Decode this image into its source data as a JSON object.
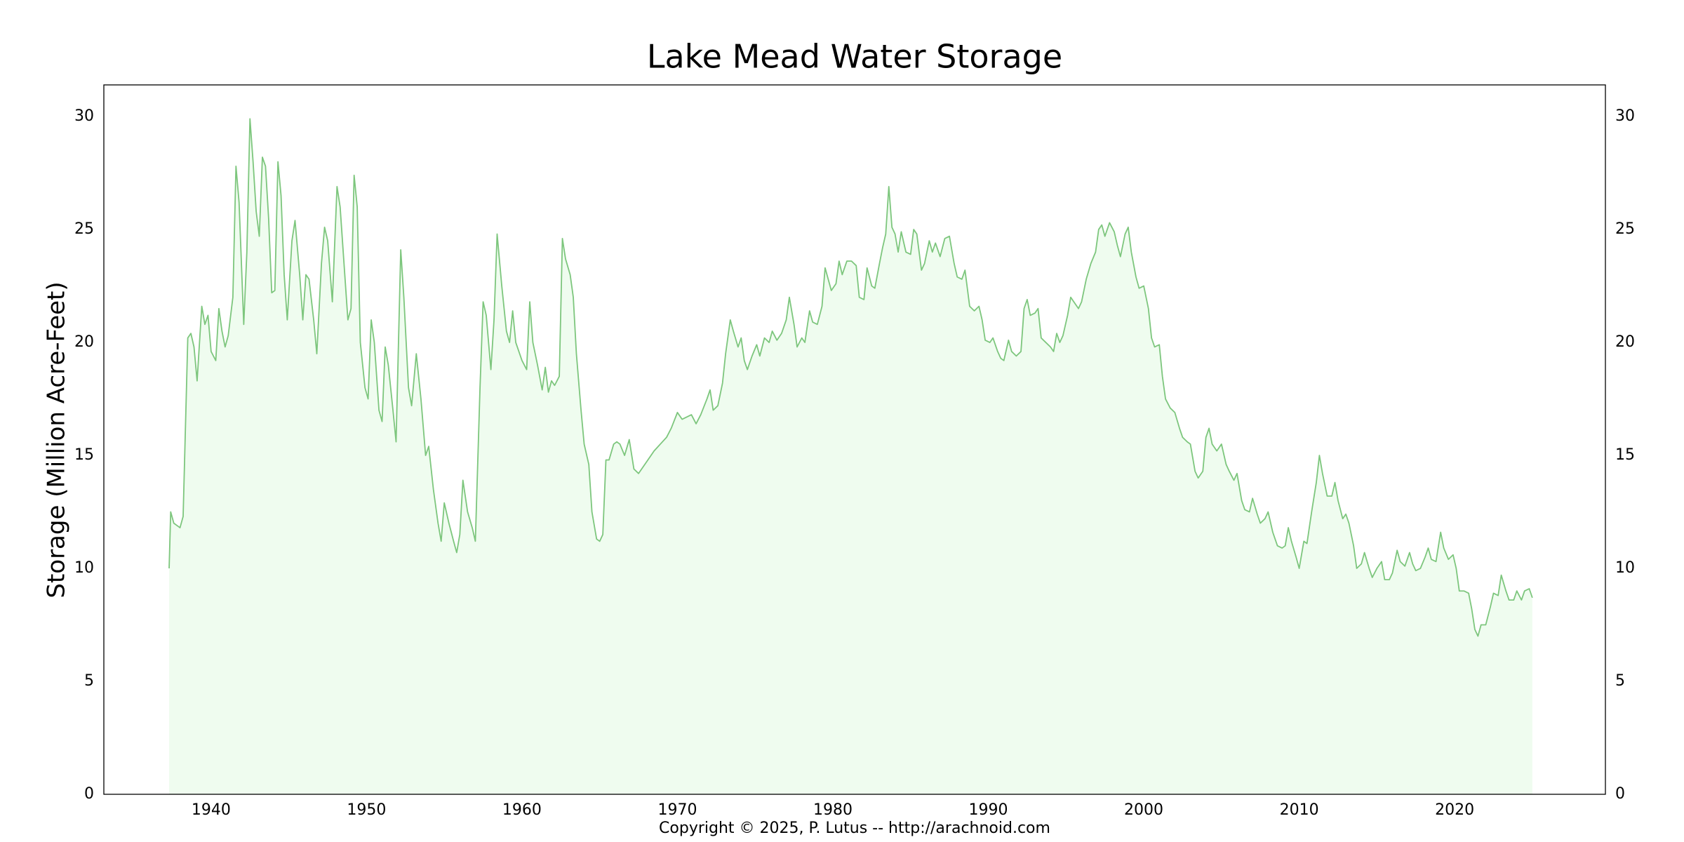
{
  "chart_data": {
    "type": "area",
    "title": "Lake Mead Water Storage",
    "ylabel": "Storage (Million Acre-Feet)",
    "footer": "Copyright © 2025, P. Lutus -- http://arachnoid.com",
    "color": "#7dc67d",
    "fill_color": "#effcef",
    "grid": true,
    "xlim": [
      1933.1,
      2029.7
    ],
    "xticks": [
      1940,
      1950,
      1960,
      1970,
      1980,
      1990,
      2000,
      2010,
      2020
    ],
    "ylim": [
      0,
      31.4
    ],
    "yticks": [
      0,
      5,
      10,
      15,
      20,
      25,
      30
    ],
    "y2lim": [
      0,
      31.4
    ],
    "y2ticks": [
      0,
      5,
      10,
      15,
      20,
      25,
      30
    ],
    "x": [
      1937.3,
      1937.4,
      1937.6,
      1938.0,
      1938.2,
      1938.5,
      1938.7,
      1938.9,
      1939.1,
      1939.4,
      1939.6,
      1939.8,
      1940.0,
      1940.3,
      1940.5,
      1940.7,
      1940.9,
      1941.1,
      1941.4,
      1941.6,
      1941.8,
      1942.1,
      1942.3,
      1942.5,
      1942.7,
      1942.9,
      1943.1,
      1943.3,
      1943.5,
      1943.7,
      1943.9,
      1944.1,
      1944.3,
      1944.5,
      1944.7,
      1944.9,
      1945.2,
      1945.4,
      1945.7,
      1945.9,
      1946.1,
      1946.3,
      1946.6,
      1946.8,
      1947.1,
      1947.3,
      1947.5,
      1947.8,
      1948.1,
      1948.3,
      1948.6,
      1948.8,
      1949.0,
      1949.2,
      1949.4,
      1949.6,
      1949.9,
      1950.1,
      1950.3,
      1950.5,
      1950.8,
      1951.0,
      1951.2,
      1951.4,
      1951.7,
      1951.9,
      1952.2,
      1952.4,
      1952.7,
      1952.9,
      1953.2,
      1953.5,
      1953.8,
      1954.0,
      1954.3,
      1954.6,
      1954.8,
      1955.0,
      1955.3,
      1955.6,
      1955.8,
      1956.0,
      1956.2,
      1956.5,
      1956.8,
      1957.0,
      1957.3,
      1957.5,
      1957.7,
      1958.0,
      1958.2,
      1958.4,
      1958.7,
      1959.0,
      1959.2,
      1959.4,
      1959.6,
      1960.0,
      1960.3,
      1960.5,
      1960.7,
      1961.0,
      1961.3,
      1961.5,
      1961.7,
      1961.9,
      1962.1,
      1962.4,
      1962.6,
      1962.8,
      1963.1,
      1963.3,
      1963.5,
      1963.8,
      1964.0,
      1964.3,
      1964.5,
      1964.8,
      1965.0,
      1965.2,
      1965.4,
      1965.6,
      1965.9,
      1966.1,
      1966.3,
      1966.6,
      1966.9,
      1967.2,
      1967.5,
      1967.8,
      1968.1,
      1968.5,
      1968.9,
      1969.3,
      1969.6,
      1970.0,
      1970.3,
      1970.6,
      1970.9,
      1971.2,
      1971.5,
      1971.9,
      1972.1,
      1972.3,
      1972.6,
      1972.9,
      1973.1,
      1973.4,
      1973.6,
      1973.9,
      1974.1,
      1974.3,
      1974.5,
      1974.8,
      1975.1,
      1975.3,
      1975.6,
      1975.9,
      1976.1,
      1976.4,
      1976.7,
      1977.0,
      1977.2,
      1977.5,
      1977.7,
      1978.0,
      1978.2,
      1978.5,
      1978.7,
      1979.0,
      1979.3,
      1979.5,
      1979.7,
      1979.9,
      1980.2,
      1980.4,
      1980.6,
      1980.9,
      1981.2,
      1981.5,
      1981.7,
      1982.0,
      1982.2,
      1982.5,
      1982.7,
      1983.0,
      1983.2,
      1983.4,
      1983.6,
      1983.8,
      1984.0,
      1984.2,
      1984.4,
      1984.7,
      1985.0,
      1985.2,
      1985.4,
      1985.7,
      1985.9,
      1986.2,
      1986.4,
      1986.6,
      1986.9,
      1987.2,
      1987.5,
      1987.8,
      1988.0,
      1988.3,
      1988.5,
      1988.8,
      1989.1,
      1989.4,
      1989.6,
      1989.8,
      1990.1,
      1990.3,
      1990.6,
      1990.8,
      1991.0,
      1991.3,
      1991.5,
      1991.8,
      1992.1,
      1992.3,
      1992.5,
      1992.7,
      1993.0,
      1993.2,
      1993.4,
      1993.7,
      1994.0,
      1994.2,
      1994.4,
      1994.6,
      1994.8,
      1995.1,
      1995.3,
      1995.5,
      1995.8,
      1996.0,
      1996.3,
      1996.6,
      1996.9,
      1997.1,
      1997.3,
      1997.5,
      1997.8,
      1998.1,
      1998.3,
      1998.5,
      1998.8,
      1999.0,
      1999.2,
      1999.5,
      1999.7,
      2000.0,
      2000.3,
      2000.5,
      2000.7,
      2001.0,
      2001.2,
      2001.4,
      2001.7,
      2002.0,
      2002.3,
      2002.5,
      2002.8,
      2003.0,
      2003.3,
      2003.5,
      2003.8,
      2004.0,
      2004.2,
      2004.4,
      2004.7,
      2005.0,
      2005.3,
      2005.5,
      2005.8,
      2006.0,
      2006.3,
      2006.5,
      2006.8,
      2007.0,
      2007.3,
      2007.5,
      2007.8,
      2008.0,
      2008.3,
      2008.6,
      2008.9,
      2009.1,
      2009.3,
      2009.5,
      2009.8,
      2010.0,
      2010.3,
      2010.5,
      2010.8,
      2011.1,
      2011.3,
      2011.5,
      2011.8,
      2012.1,
      2012.3,
      2012.5,
      2012.8,
      2013.0,
      2013.2,
      2013.5,
      2013.7,
      2014.0,
      2014.2,
      2014.5,
      2014.7,
      2015.0,
      2015.3,
      2015.5,
      2015.8,
      2016.0,
      2016.3,
      2016.5,
      2016.8,
      2017.1,
      2017.3,
      2017.5,
      2017.8,
      2018.1,
      2018.3,
      2018.5,
      2018.8,
      2019.1,
      2019.3,
      2019.6,
      2019.9,
      2020.1,
      2020.3,
      2020.6,
      2020.9,
      2021.1,
      2021.3,
      2021.5,
      2021.7,
      2022.0,
      2022.3,
      2022.5,
      2022.8,
      2023.0,
      2023.3,
      2023.5,
      2023.8,
      2024.0,
      2024.3,
      2024.5,
      2024.8,
      2025.0
    ],
    "values": [
      10.0,
      12.5,
      12.0,
      11.8,
      12.3,
      20.2,
      20.4,
      19.8,
      18.3,
      21.6,
      20.8,
      21.2,
      19.6,
      19.2,
      21.5,
      20.5,
      19.8,
      20.3,
      22.0,
      27.8,
      26.2,
      20.8,
      24.0,
      29.9,
      28.0,
      25.8,
      24.7,
      28.2,
      27.8,
      25.5,
      22.2,
      22.3,
      28.0,
      26.5,
      23.0,
      21.0,
      24.5,
      25.4,
      23.0,
      21.0,
      23.0,
      22.8,
      21.0,
      19.5,
      23.5,
      25.1,
      24.5,
      21.8,
      26.9,
      26.0,
      23.0,
      21.0,
      21.5,
      27.4,
      26.0,
      20.0,
      18.0,
      17.5,
      21.0,
      20.0,
      17.0,
      16.5,
      19.8,
      19.0,
      17.0,
      15.6,
      24.1,
      22.0,
      18.0,
      17.2,
      19.5,
      17.5,
      15.0,
      15.4,
      13.5,
      12.0,
      11.2,
      12.9,
      12.0,
      11.2,
      10.7,
      11.5,
      13.9,
      12.5,
      11.8,
      11.2,
      18.0,
      21.8,
      21.2,
      18.8,
      21.0,
      24.8,
      22.5,
      20.5,
      20.0,
      21.4,
      20.0,
      19.2,
      18.8,
      21.8,
      20.0,
      19.0,
      17.9,
      18.9,
      17.8,
      18.3,
      18.1,
      18.5,
      24.6,
      23.7,
      23.0,
      22.0,
      19.5,
      17.0,
      15.5,
      14.6,
      12.5,
      11.3,
      11.2,
      11.5,
      14.8,
      14.8,
      15.5,
      15.6,
      15.5,
      15.0,
      15.7,
      14.4,
      14.2,
      14.5,
      14.8,
      15.2,
      15.5,
      15.8,
      16.2,
      16.9,
      16.6,
      16.7,
      16.8,
      16.4,
      16.8,
      17.5,
      17.9,
      17.0,
      17.2,
      18.2,
      19.5,
      21.0,
      20.5,
      19.8,
      20.2,
      19.2,
      18.8,
      19.4,
      19.9,
      19.4,
      20.2,
      20.0,
      20.5,
      20.1,
      20.4,
      21.0,
      22.0,
      20.8,
      19.8,
      20.2,
      20.0,
      21.4,
      20.9,
      20.8,
      21.6,
      23.3,
      22.8,
      22.3,
      22.6,
      23.6,
      23.0,
      23.6,
      23.6,
      23.4,
      22.0,
      21.9,
      23.3,
      22.5,
      22.4,
      23.5,
      24.2,
      24.8,
      26.9,
      25.1,
      24.8,
      24.0,
      24.9,
      24.0,
      23.9,
      25.0,
      24.8,
      23.2,
      23.5,
      24.5,
      24.0,
      24.4,
      23.8,
      24.6,
      24.7,
      23.5,
      22.9,
      22.8,
      23.2,
      21.6,
      21.4,
      21.6,
      21.0,
      20.1,
      20.0,
      20.2,
      19.6,
      19.3,
      19.2,
      20.1,
      19.6,
      19.4,
      19.6,
      21.5,
      21.9,
      21.2,
      21.3,
      21.5,
      20.2,
      20.0,
      19.8,
      19.6,
      20.4,
      20.0,
      20.3,
      21.2,
      22.0,
      21.8,
      21.5,
      21.8,
      22.8,
      23.5,
      24.0,
      25.0,
      25.2,
      24.7,
      25.3,
      24.9,
      24.3,
      23.8,
      24.8,
      25.1,
      24.0,
      22.9,
      22.4,
      22.5,
      21.5,
      20.2,
      19.8,
      19.9,
      18.5,
      17.5,
      17.1,
      16.9,
      16.2,
      15.8,
      15.6,
      15.5,
      14.3,
      14.0,
      14.3,
      15.8,
      16.2,
      15.5,
      15.2,
      15.5,
      14.6,
      14.3,
      13.9,
      14.2,
      13.0,
      12.6,
      12.5,
      13.1,
      12.4,
      12.0,
      12.2,
      12.5,
      11.6,
      11.0,
      10.9,
      11.0,
      11.8,
      11.2,
      10.5,
      10.0,
      11.2,
      11.1,
      12.5,
      13.8,
      15.0,
      14.2,
      13.2,
      13.2,
      13.8,
      13.0,
      12.2,
      12.4,
      12.0,
      11.0,
      10.0,
      10.2,
      10.7,
      10.0,
      9.6,
      10.0,
      10.3,
      9.5,
      9.5,
      9.8,
      10.8,
      10.3,
      10.1,
      10.7,
      10.2,
      9.9,
      10.0,
      10.5,
      10.9,
      10.4,
      10.3,
      11.6,
      10.9,
      10.4,
      10.6,
      10.0,
      9.0,
      9.0,
      8.9,
      8.2,
      7.3,
      7.0,
      7.5,
      7.5,
      8.3,
      8.9,
      8.8,
      9.7,
      9.0,
      8.6,
      8.6,
      9.0,
      8.6,
      9.0,
      9.1,
      8.7
    ]
  }
}
